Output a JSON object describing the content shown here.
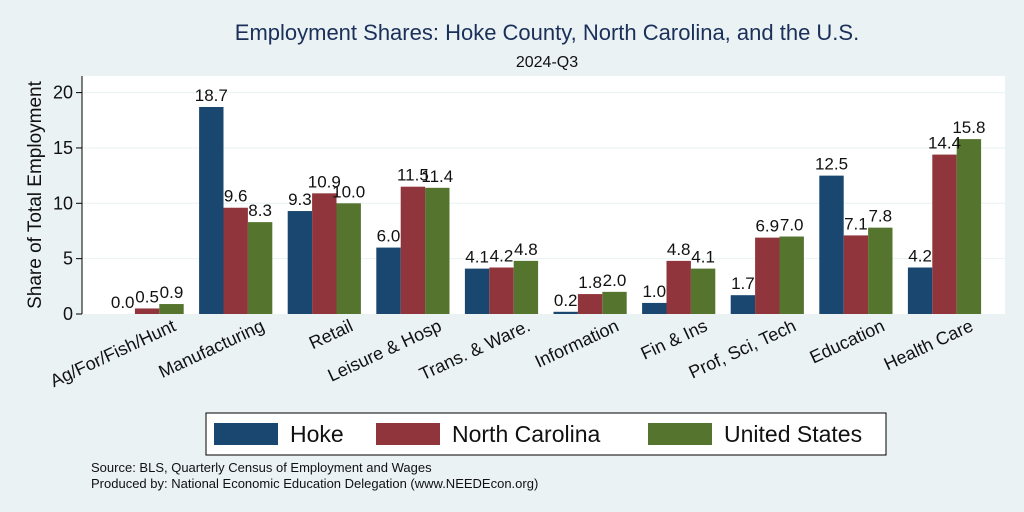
{
  "chart_data": {
    "type": "bar",
    "title": "Employment Shares: Hoke County, North Carolina, and the U.S.",
    "subtitle": "2024-Q3",
    "xlabel": "",
    "ylabel": "Share of Total Employment",
    "ylim": [
      0,
      21.5
    ],
    "yticks": [
      0,
      5,
      10,
      15,
      20
    ],
    "grid": true,
    "legend_position": "bottom",
    "categories": [
      "Ag/For/Fish/Hunt",
      "Manufacturing",
      "Retail",
      "Leisure & Hosp",
      "Trans. & Ware.",
      "Information",
      "Fin & Ins",
      "Prof, Sci, Tech",
      "Education",
      "Health Care"
    ],
    "series": [
      {
        "name": "Hoke",
        "color": "#1a476f",
        "values": [
          0.0,
          18.7,
          9.3,
          6.0,
          4.1,
          0.2,
          1.0,
          1.7,
          12.5,
          4.2
        ]
      },
      {
        "name": "North Carolina",
        "color": "#90353b",
        "values": [
          0.5,
          9.6,
          10.9,
          11.5,
          4.2,
          1.8,
          4.8,
          6.9,
          7.1,
          14.4
        ]
      },
      {
        "name": "United States",
        "color": "#55752f",
        "values": [
          0.9,
          8.3,
          10.0,
          11.4,
          4.8,
          2.0,
          4.1,
          7.0,
          7.8,
          15.8
        ]
      }
    ],
    "notes": [
      "Source: BLS, Quarterly Census of Employment and Wages",
      "Produced by: National Economic Education Delegation (www.NEEDEcon.org)"
    ]
  }
}
